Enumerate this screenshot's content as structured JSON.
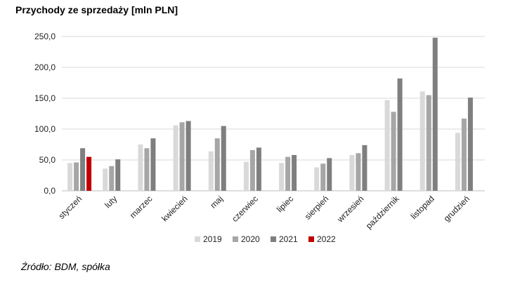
{
  "chart_data": {
    "type": "bar",
    "title": "Przychody ze sprzedaży [mln PLN]",
    "xlabel": "",
    "ylabel": "",
    "ylim": [
      0,
      250
    ],
    "yticks": [
      "0,0",
      "50,0",
      "100,0",
      "150,0",
      "200,0",
      "250,0"
    ],
    "grid": true,
    "legend": "bottom",
    "categories": [
      "styczeń",
      "luty",
      "marzec",
      "kwiecień",
      "maj",
      "czerwiec",
      "lipiec",
      "sierpień",
      "wrzesień",
      "październik",
      "listopad",
      "grudzień"
    ],
    "series": [
      {
        "name": "2019",
        "color": "#d9d9d9",
        "values": [
          45,
          36,
          75,
          106,
          64,
          47,
          45,
          38,
          58,
          147,
          161,
          94
        ]
      },
      {
        "name": "2020",
        "color": "#a6a6a6",
        "values": [
          46,
          40,
          69,
          111,
          85,
          66,
          55,
          44,
          61,
          128,
          155,
          117
        ]
      },
      {
        "name": "2021",
        "color": "#7f7f7f",
        "values": [
          69,
          51,
          85,
          113,
          105,
          70,
          58,
          53,
          74,
          182,
          248,
          151
        ]
      },
      {
        "name": "2022",
        "color": "#c00000",
        "values": [
          55,
          null,
          null,
          null,
          null,
          null,
          null,
          null,
          null,
          null,
          null,
          null
        ]
      }
    ]
  },
  "source": "Źródło: BDM, spółka"
}
